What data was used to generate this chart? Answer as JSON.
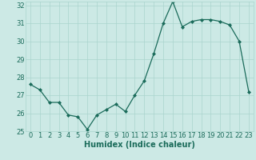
{
  "x": [
    0,
    1,
    2,
    3,
    4,
    5,
    6,
    7,
    8,
    9,
    10,
    11,
    12,
    13,
    14,
    15,
    16,
    17,
    18,
    19,
    20,
    21,
    22,
    23
  ],
  "y": [
    27.6,
    27.3,
    26.6,
    26.6,
    25.9,
    25.8,
    25.1,
    25.9,
    26.2,
    26.5,
    26.1,
    27.0,
    27.8,
    29.3,
    31.0,
    32.2,
    30.8,
    31.1,
    31.2,
    31.2,
    31.1,
    30.9,
    30.0,
    27.2
  ],
  "xlabel": "Humidex (Indice chaleur)",
  "ylim": [
    25,
    32
  ],
  "xlim": [
    -0.5,
    23.5
  ],
  "yticks": [
    25,
    26,
    27,
    28,
    29,
    30,
    31,
    32
  ],
  "xticks": [
    0,
    1,
    2,
    3,
    4,
    5,
    6,
    7,
    8,
    9,
    10,
    11,
    12,
    13,
    14,
    15,
    16,
    17,
    18,
    19,
    20,
    21,
    22,
    23
  ],
  "line_color": "#1a6b5a",
  "marker_color": "#1a6b5a",
  "bg_color": "#cce9e5",
  "grid_color": "#aad4ce",
  "text_color": "#1a6b5a",
  "xlabel_fontsize": 7,
  "tick_fontsize": 6
}
